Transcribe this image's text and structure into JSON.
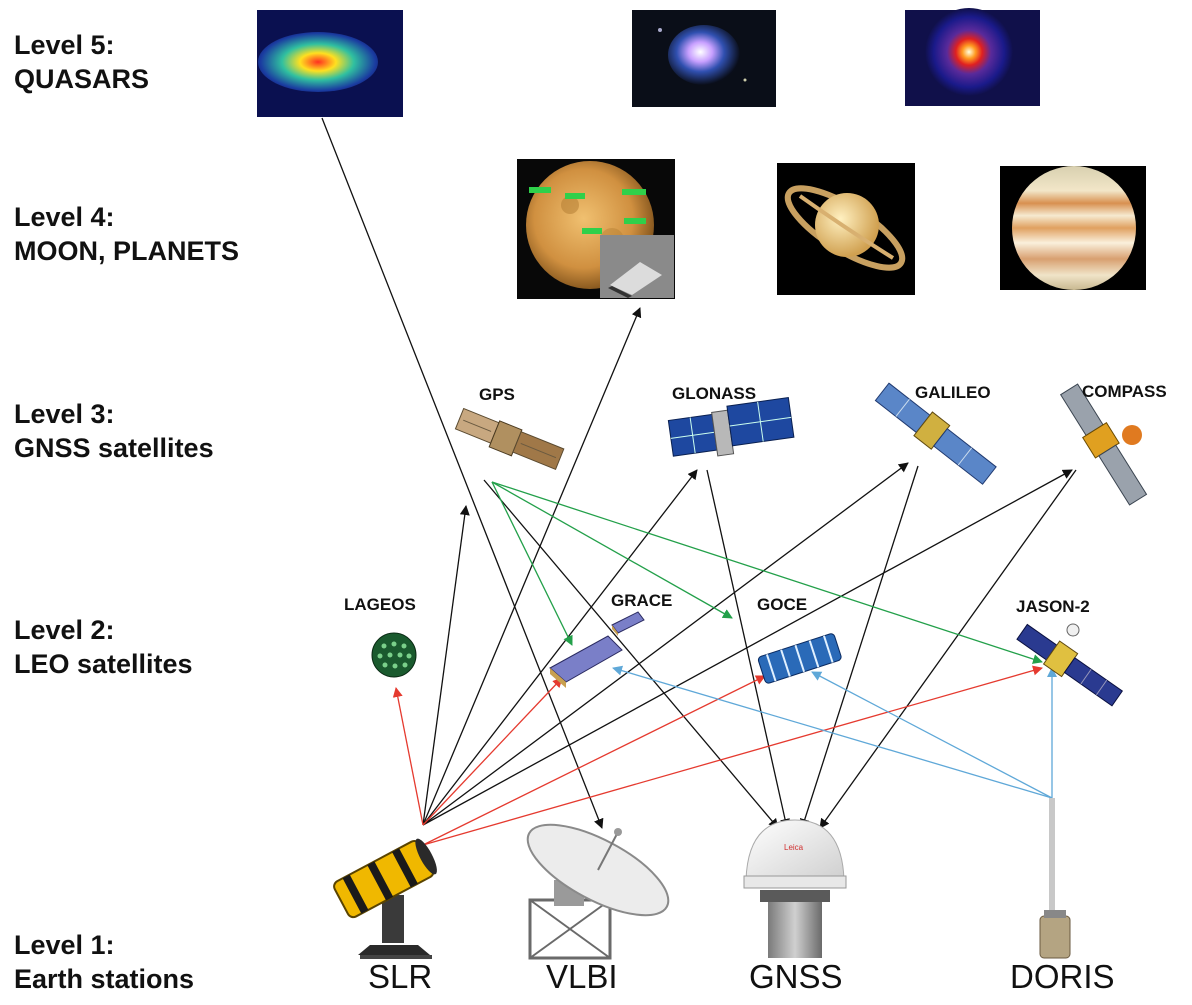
{
  "levels": [
    {
      "line1": "Level 5:",
      "line2": "QUASARS"
    },
    {
      "line1": "Level 4:",
      "line2": "MOON, PLANETS"
    },
    {
      "line1": "Level 3:",
      "line2": "GNSS satellites"
    },
    {
      "line1": "Level 2:",
      "line2": "LEO satellites"
    },
    {
      "line1": "Level 1:",
      "line2": "Earth stations"
    }
  ],
  "gnss_satellites": [
    "GPS",
    "GLONASS",
    "GALILEO",
    "COMPASS"
  ],
  "leo_satellites": [
    "LAGEOS",
    "GRACE",
    "GOCE",
    "JASON-2"
  ],
  "earth_stations": [
    "SLR",
    "VLBI",
    "GNSS",
    "DORIS"
  ],
  "colors": {
    "black_link": "#111111",
    "red_link": "#e53a2f",
    "green_link": "#23a04a",
    "blue_link": "#5fa8d8"
  }
}
